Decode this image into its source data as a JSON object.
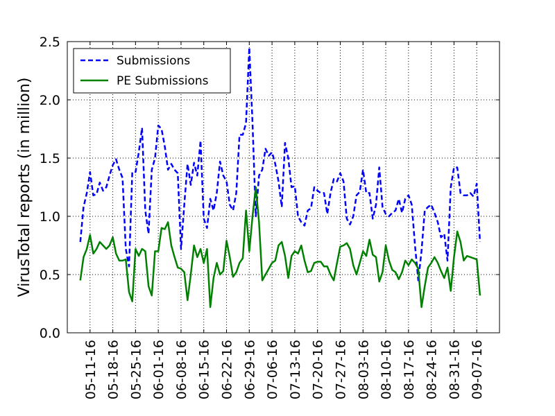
{
  "chart_data": {
    "type": "line",
    "ylabel": "VirusTotal reports (in million)",
    "x": [
      "05-08-16",
      "05-09-16",
      "05-10-16",
      "05-11-16",
      "05-12-16",
      "05-13-16",
      "05-14-16",
      "05-15-16",
      "05-16-16",
      "05-17-16",
      "05-18-16",
      "05-19-16",
      "05-20-16",
      "05-21-16",
      "05-22-16",
      "05-23-16",
      "05-24-16",
      "05-25-16",
      "05-26-16",
      "05-27-16",
      "05-28-16",
      "05-29-16",
      "05-30-16",
      "05-31-16",
      "06-01-16",
      "06-02-16",
      "06-03-16",
      "06-04-16",
      "06-05-16",
      "06-06-16",
      "06-07-16",
      "06-08-16",
      "06-09-16",
      "06-10-16",
      "06-11-16",
      "06-12-16",
      "06-13-16",
      "06-14-16",
      "06-15-16",
      "06-16-16",
      "06-17-16",
      "06-18-16",
      "06-19-16",
      "06-20-16",
      "06-21-16",
      "06-22-16",
      "06-23-16",
      "06-24-16",
      "06-25-16",
      "06-26-16",
      "06-27-16",
      "06-28-16",
      "06-29-16",
      "06-30-16",
      "07-01-16",
      "07-02-16",
      "07-03-16",
      "07-04-16",
      "07-05-16",
      "07-06-16",
      "07-07-16",
      "07-08-16",
      "07-09-16",
      "07-10-16",
      "07-11-16",
      "07-12-16",
      "07-13-16",
      "07-14-16",
      "07-15-16",
      "07-16-16",
      "07-17-16",
      "07-18-16",
      "07-19-16",
      "07-20-16",
      "07-21-16",
      "07-22-16",
      "07-23-16",
      "07-24-16",
      "07-25-16",
      "07-26-16",
      "07-27-16",
      "07-28-16",
      "07-29-16",
      "07-30-16",
      "07-31-16",
      "08-01-16",
      "08-02-16",
      "08-03-16",
      "08-04-16",
      "08-05-16",
      "08-06-16",
      "08-07-16",
      "08-08-16",
      "08-09-16",
      "08-10-16",
      "08-11-16",
      "08-12-16",
      "08-13-16",
      "08-14-16",
      "08-15-16",
      "08-16-16",
      "08-17-16",
      "08-18-16",
      "08-19-16",
      "08-20-16",
      "08-21-16",
      "08-22-16",
      "08-23-16",
      "08-24-16",
      "08-25-16",
      "08-26-16",
      "08-27-16",
      "08-28-16",
      "08-29-16",
      "08-30-16",
      "08-31-16",
      "09-01-16",
      "09-02-16",
      "09-03-16",
      "09-04-16",
      "09-05-16",
      "09-06-16",
      "09-07-16",
      "09-08-16"
    ],
    "series": [
      {
        "name": "Submissions",
        "color": "#0000ff",
        "dash": true,
        "values": [
          0.78,
          1.08,
          1.2,
          1.38,
          1.18,
          1.19,
          1.29,
          1.22,
          1.25,
          1.35,
          1.44,
          1.49,
          1.4,
          1.33,
          0.72,
          0.57,
          1.38,
          1.38,
          1.55,
          1.76,
          1.05,
          0.85,
          1.4,
          1.5,
          1.78,
          1.75,
          1.6,
          1.4,
          1.45,
          1.4,
          1.37,
          0.72,
          1.1,
          1.45,
          1.27,
          1.46,
          1.35,
          1.65,
          0.98,
          0.9,
          1.15,
          1.05,
          1.2,
          1.47,
          1.35,
          1.3,
          1.1,
          1.05,
          1.2,
          1.7,
          1.7,
          1.8,
          2.45,
          1.8,
          1.0,
          1.35,
          1.4,
          1.58,
          1.52,
          1.55,
          1.45,
          1.3,
          1.08,
          1.63,
          1.5,
          1.25,
          1.26,
          1.0,
          0.95,
          0.92,
          1.05,
          1.07,
          1.25,
          1.22,
          1.2,
          1.2,
          1.02,
          1.2,
          1.32,
          1.3,
          1.37,
          1.3,
          0.98,
          0.93,
          1.0,
          1.18,
          1.21,
          1.4,
          1.2,
          1.2,
          0.98,
          1.1,
          1.42,
          1.08,
          1.02,
          1.0,
          1.03,
          1.05,
          1.15,
          1.03,
          1.15,
          1.18,
          1.1,
          0.75,
          0.45,
          0.7,
          1.05,
          1.08,
          1.1,
          1.03,
          0.95,
          0.82,
          0.85,
          0.62,
          1.25,
          1.42,
          1.42,
          1.2,
          1.18,
          1.18,
          1.2,
          1.17,
          1.28,
          0.78
        ]
      },
      {
        "name": "PE Submissions",
        "color": "#008000",
        "dash": false,
        "values": [
          0.45,
          0.65,
          0.72,
          0.84,
          0.68,
          0.72,
          0.78,
          0.75,
          0.72,
          0.75,
          0.82,
          0.68,
          0.62,
          0.62,
          0.63,
          0.35,
          0.27,
          0.72,
          0.66,
          0.72,
          0.7,
          0.4,
          0.32,
          0.7,
          0.7,
          0.9,
          0.89,
          0.95,
          0.75,
          0.65,
          0.56,
          0.55,
          0.52,
          0.28,
          0.5,
          0.75,
          0.65,
          0.72,
          0.6,
          0.72,
          0.22,
          0.47,
          0.6,
          0.5,
          0.53,
          0.79,
          0.65,
          0.48,
          0.52,
          0.6,
          0.64,
          1.05,
          0.7,
          1.0,
          1.25,
          0.95,
          0.45,
          0.5,
          0.55,
          0.6,
          0.62,
          0.75,
          0.78,
          0.66,
          0.47,
          0.66,
          0.7,
          0.68,
          0.75,
          0.62,
          0.52,
          0.53,
          0.6,
          0.61,
          0.61,
          0.57,
          0.57,
          0.5,
          0.45,
          0.6,
          0.74,
          0.75,
          0.77,
          0.72,
          0.58,
          0.5,
          0.6,
          0.7,
          0.66,
          0.8,
          0.67,
          0.65,
          0.44,
          0.52,
          0.75,
          0.62,
          0.54,
          0.52,
          0.46,
          0.52,
          0.62,
          0.58,
          0.63,
          0.6,
          0.55,
          0.22,
          0.4,
          0.56,
          0.6,
          0.65,
          0.6,
          0.53,
          0.47,
          0.56,
          0.36,
          0.65,
          0.87,
          0.78,
          0.62,
          0.66,
          0.65,
          0.64,
          0.63,
          0.32
        ]
      }
    ],
    "xlim": [
      "05-04-16",
      "09-14-16"
    ],
    "xticks": [
      "05-11-16",
      "05-18-16",
      "05-25-16",
      "06-01-16",
      "06-08-16",
      "06-15-16",
      "06-22-16",
      "06-29-16",
      "07-06-16",
      "07-13-16",
      "07-20-16",
      "07-27-16",
      "08-03-16",
      "08-10-16",
      "08-17-16",
      "08-24-16",
      "08-31-16",
      "09-07-16"
    ],
    "ylim": [
      0,
      2.5
    ],
    "yticks": [
      {
        "value": 0,
        "label": "0.0"
      },
      0.5,
      {
        "value": 1,
        "label": "1.0"
      },
      1.5,
      {
        "value": 2,
        "label": "2.0"
      },
      2.5
    ],
    "grid": true,
    "legend": "upper left"
  }
}
